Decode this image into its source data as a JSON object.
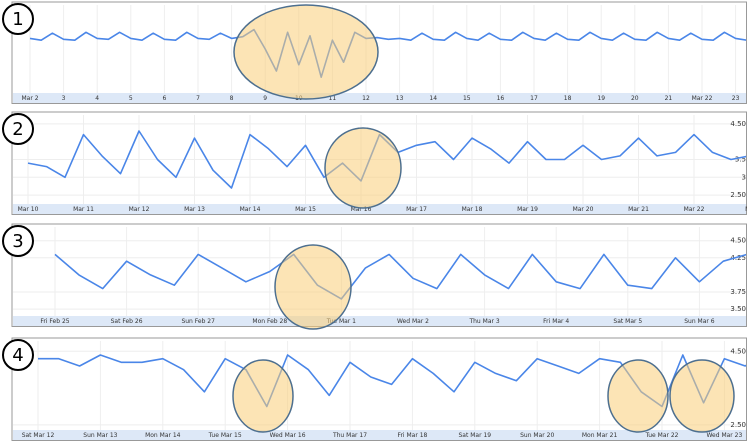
{
  "chart_data": [
    {
      "type": "line",
      "label": "1",
      "color": "#4a86e8",
      "categories": [
        "Mar 2",
        null,
        null,
        "3",
        null,
        null,
        "4",
        null,
        null,
        "5",
        null,
        null,
        "6",
        null,
        null,
        "7",
        null,
        null,
        "8",
        null,
        null,
        "9",
        null,
        null,
        "10",
        null,
        null,
        "11",
        null,
        null,
        "12",
        null,
        null,
        "13",
        null,
        null,
        "14",
        null,
        null,
        "15",
        null,
        null,
        "16",
        null,
        null,
        "17",
        null,
        null,
        "18",
        null,
        null,
        "19",
        null,
        null,
        "20",
        null,
        null,
        "21",
        null,
        null,
        "Mar 22",
        null,
        null,
        "23",
        null,
        null
      ],
      "values": [
        6.2,
        6.0,
        6.8,
        6.1,
        6.0,
        6.9,
        6.2,
        6.1,
        6.9,
        6.2,
        6.0,
        6.8,
        6.1,
        6.0,
        6.9,
        6.2,
        6.1,
        6.8,
        6.2,
        6.4,
        7.2,
        5.0,
        2.5,
        6.9,
        3.2,
        6.5,
        1.8,
        6.0,
        3.5,
        6.9,
        6.2,
        6.3,
        6.1,
        6.2,
        6.0,
        6.8,
        6.1,
        6.0,
        6.9,
        6.2,
        6.0,
        6.8,
        6.1,
        6.0,
        6.9,
        6.2,
        6.0,
        6.8,
        6.1,
        6.0,
        6.9,
        6.2,
        6.0,
        6.8,
        6.1,
        6.0,
        6.9,
        6.2,
        6.0,
        6.8,
        6.1,
        6.0,
        6.9,
        6.2,
        6.0,
        6.8
      ],
      "ylim": [
        0,
        10
      ]
    },
    {
      "type": "line",
      "label": "2",
      "color": "#4a86e8",
      "categories": [
        "Mar 10",
        null,
        null,
        "Mar 11",
        null,
        null,
        "Mar 12",
        null,
        null,
        "Mar 13",
        null,
        null,
        "Mar 14",
        null,
        null,
        "Mar 15",
        null,
        null,
        "Mar 16",
        null,
        null,
        "Mar 17",
        null,
        null,
        "Mar 18",
        null,
        null,
        "Mar 19",
        null,
        null,
        "Mar 20",
        null,
        null,
        "Mar 21",
        null,
        null,
        "Mar 22",
        null,
        null,
        "Ma",
        null,
        null
      ],
      "values": [
        3.4,
        3.3,
        3.0,
        4.2,
        3.6,
        3.1,
        4.3,
        3.5,
        3.0,
        4.1,
        3.2,
        2.7,
        4.2,
        3.8,
        3.3,
        3.9,
        3.0,
        3.4,
        2.9,
        4.2,
        3.7,
        3.9,
        4.0,
        3.5,
        4.1,
        3.8,
        3.4,
        4.0,
        3.5,
        3.5,
        3.9,
        3.5,
        3.6,
        4.1,
        3.6,
        3.7,
        4.2,
        3.7,
        3.5,
        3.6,
        3.6,
        3.7
      ],
      "ylim": [
        2.25,
        4.75
      ],
      "yticks": [
        {
          "value": 4.5,
          "label": "4.50"
        },
        {
          "value": 3.5,
          "label": "3.5"
        },
        {
          "value": 3,
          "label": "3"
        },
        {
          "value": 2.5,
          "label": "2.50"
        }
      ]
    },
    {
      "type": "line",
      "label": "3",
      "color": "#4a86e8",
      "categories": [
        "Fri Feb 25",
        null,
        null,
        "Sat Feb 26",
        null,
        null,
        "Sun Feb 27",
        null,
        null,
        "Mon Feb 28",
        null,
        null,
        "Tue Mar 1",
        null,
        null,
        "Wed Mar 2",
        null,
        null,
        "Thu Mar 3",
        null,
        null,
        "Fri Mar 4",
        null,
        null,
        "Sat Mar 5",
        null,
        null,
        "Sun Mar 6",
        null,
        null
      ],
      "values": [
        4.3,
        4.0,
        3.8,
        4.2,
        4.0,
        3.85,
        4.3,
        4.1,
        3.9,
        4.05,
        4.3,
        3.85,
        3.65,
        4.1,
        4.3,
        3.95,
        3.8,
        4.3,
        4.0,
        3.8,
        4.3,
        3.9,
        3.8,
        4.3,
        3.85,
        3.8,
        4.25,
        3.9,
        4.2,
        4.3
      ],
      "ylim": [
        3.4,
        4.7
      ],
      "yticks": [
        {
          "value": 4.5,
          "label": "4.50"
        },
        {
          "value": 4.25,
          "label": "4.25"
        },
        {
          "value": 3.75,
          "label": "3.75"
        },
        {
          "value": 3.5,
          "label": "3.50"
        }
      ]
    },
    {
      "type": "line",
      "label": "4",
      "color": "#4a86e8",
      "categories": [
        "Sat Mar 12",
        null,
        null,
        "Sun Mar 13",
        null,
        null,
        "Mon Mar 14",
        null,
        null,
        "Tue Mar 15",
        null,
        null,
        "Wed Mar 16",
        null,
        null,
        "Thu Mar 17",
        null,
        null,
        "Fri Mar 18",
        null,
        null,
        "Sat Mar 19",
        null,
        null,
        "Sun Mar 20",
        null,
        null,
        "Mon Mar 21",
        null,
        null,
        "Tue Mar 22",
        null,
        null,
        "Wed Mar 23",
        null,
        null
      ],
      "values": [
        4.3,
        4.3,
        4.1,
        4.4,
        4.2,
        4.2,
        4.3,
        4.0,
        3.4,
        4.3,
        4.0,
        3.0,
        4.4,
        4.0,
        3.3,
        4.2,
        3.8,
        3.6,
        4.3,
        3.9,
        3.4,
        4.2,
        3.9,
        3.7,
        4.3,
        4.1,
        3.9,
        4.3,
        4.2,
        3.4,
        3.0,
        4.4,
        3.1,
        4.3,
        4.1,
        4.5
      ],
      "ylim": [
        2.36,
        4.78
      ],
      "yticks": [
        {
          "value": 4.5,
          "label": "4.50"
        },
        {
          "value": 2.5,
          "label": "2.50"
        }
      ]
    }
  ]
}
